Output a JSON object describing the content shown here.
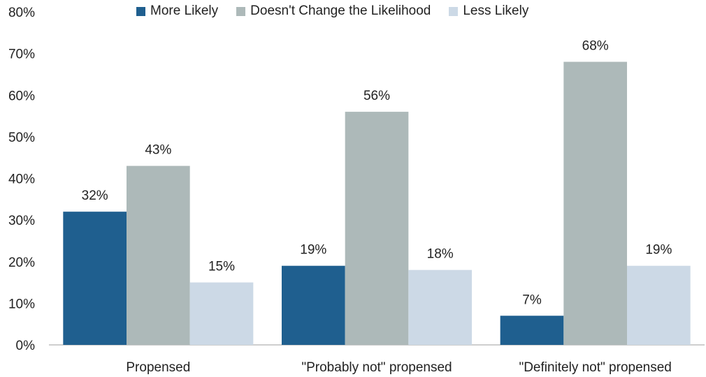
{
  "chart_data": {
    "type": "bar",
    "categories": [
      "Propensed",
      "\"Probably not\" propensed",
      "\"Definitely not\" propensed"
    ],
    "series": [
      {
        "name": "More Likely",
        "values": [
          32,
          19,
          7
        ],
        "color": "#1f5f8f"
      },
      {
        "name": "Doesn't Change the Likelihood",
        "values": [
          43,
          56,
          68
        ],
        "color": "#adb9b9"
      },
      {
        "name": "Less Likely",
        "values": [
          15,
          18,
          19
        ],
        "color": "#ccd9e6"
      }
    ],
    "ylim": [
      0,
      80
    ],
    "yticks": [
      "0%",
      "10%",
      "20%",
      "30%",
      "40%",
      "50%",
      "60%",
      "70%",
      "80%"
    ],
    "value_suffix": "%",
    "legend_position": "top"
  }
}
